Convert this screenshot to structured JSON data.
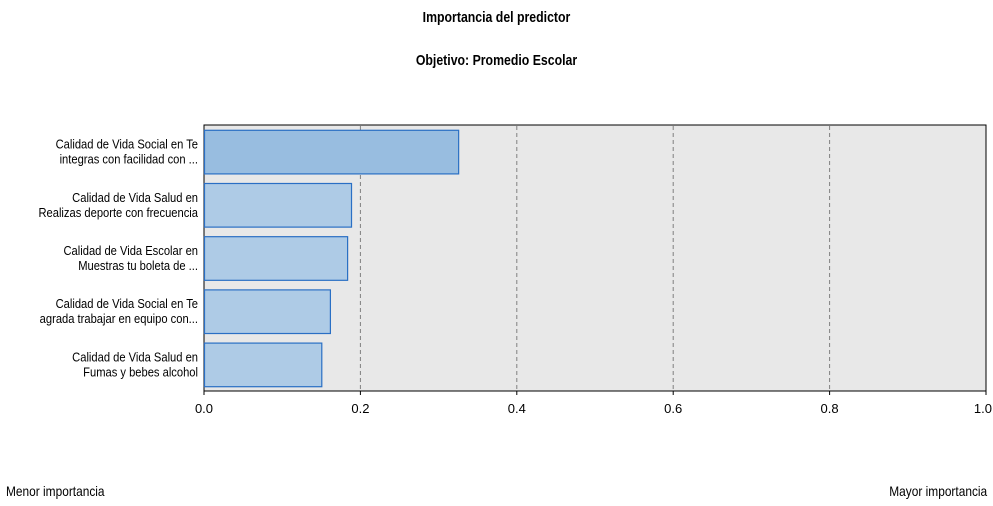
{
  "header": {
    "title": "Importancia del predictor",
    "subtitle": "Objetivo: Promedio Escolar"
  },
  "footer": {
    "left_label": "Menor importancia",
    "right_label": "Mayor importancia"
  },
  "colors": {
    "plot_background": "#e8e8e8",
    "bar_fill_top": "#98bde0",
    "bar_fill": "#aecbe6",
    "bar_stroke": "#2a6fc4",
    "grid": "#808080"
  },
  "chart_data": {
    "type": "bar",
    "orientation": "horizontal",
    "title": "Importancia del predictor",
    "subtitle": "Objetivo: Promedio Escolar",
    "categories": [
      [
        "Calidad de Vida Social en Te",
        "integras con facilidad con ..."
      ],
      [
        "Calidad de Vida Salud en",
        "Realizas deporte con frecuencia"
      ],
      [
        "Calidad de Vida Escolar en",
        "Muestras tu boleta de ..."
      ],
      [
        "Calidad de Vida Social en Te",
        "agrada trabajar en equipo con..."
      ],
      [
        "Calidad de Vida Salud en",
        "Fumas y bebes alcohol"
      ]
    ],
    "values": [
      0.325,
      0.188,
      0.183,
      0.161,
      0.15
    ],
    "xlim": [
      0,
      1.0
    ],
    "xticks": [
      "0.0",
      "0.2",
      "0.4",
      "0.6",
      "0.8",
      "1.0"
    ],
    "grid": true
  }
}
